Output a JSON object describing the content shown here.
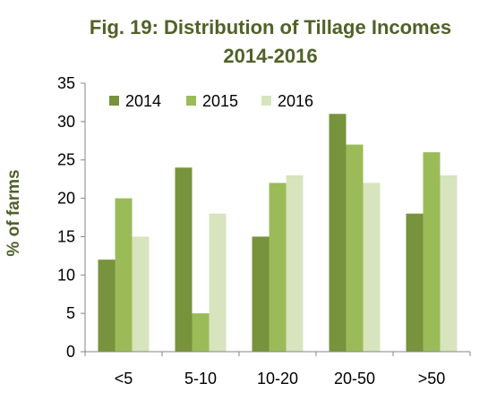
{
  "chart_data": {
    "type": "bar",
    "title": "Fig. 19: Distribution of Tillage Incomes",
    "subtitle": "2014-2016",
    "ylabel": "% of farms",
    "xlabel": "",
    "categories": [
      "<5",
      "5-10",
      "10-20",
      "20-50",
      ">50"
    ],
    "series": [
      {
        "name": "2014",
        "values": [
          12,
          24,
          15,
          31,
          18
        ],
        "color": "#77933c"
      },
      {
        "name": "2015",
        "values": [
          20,
          5,
          22,
          27,
          26
        ],
        "color": "#9bbb59"
      },
      {
        "name": "2016",
        "values": [
          15,
          18,
          23,
          22,
          23
        ],
        "color": "#d7e4bd"
      }
    ],
    "ylim": [
      0,
      35
    ],
    "yticks": [
      0,
      5,
      10,
      15,
      20,
      25,
      30,
      35
    ],
    "grid": false,
    "legend_position": "top-left",
    "title_color": "#4f6228"
  }
}
